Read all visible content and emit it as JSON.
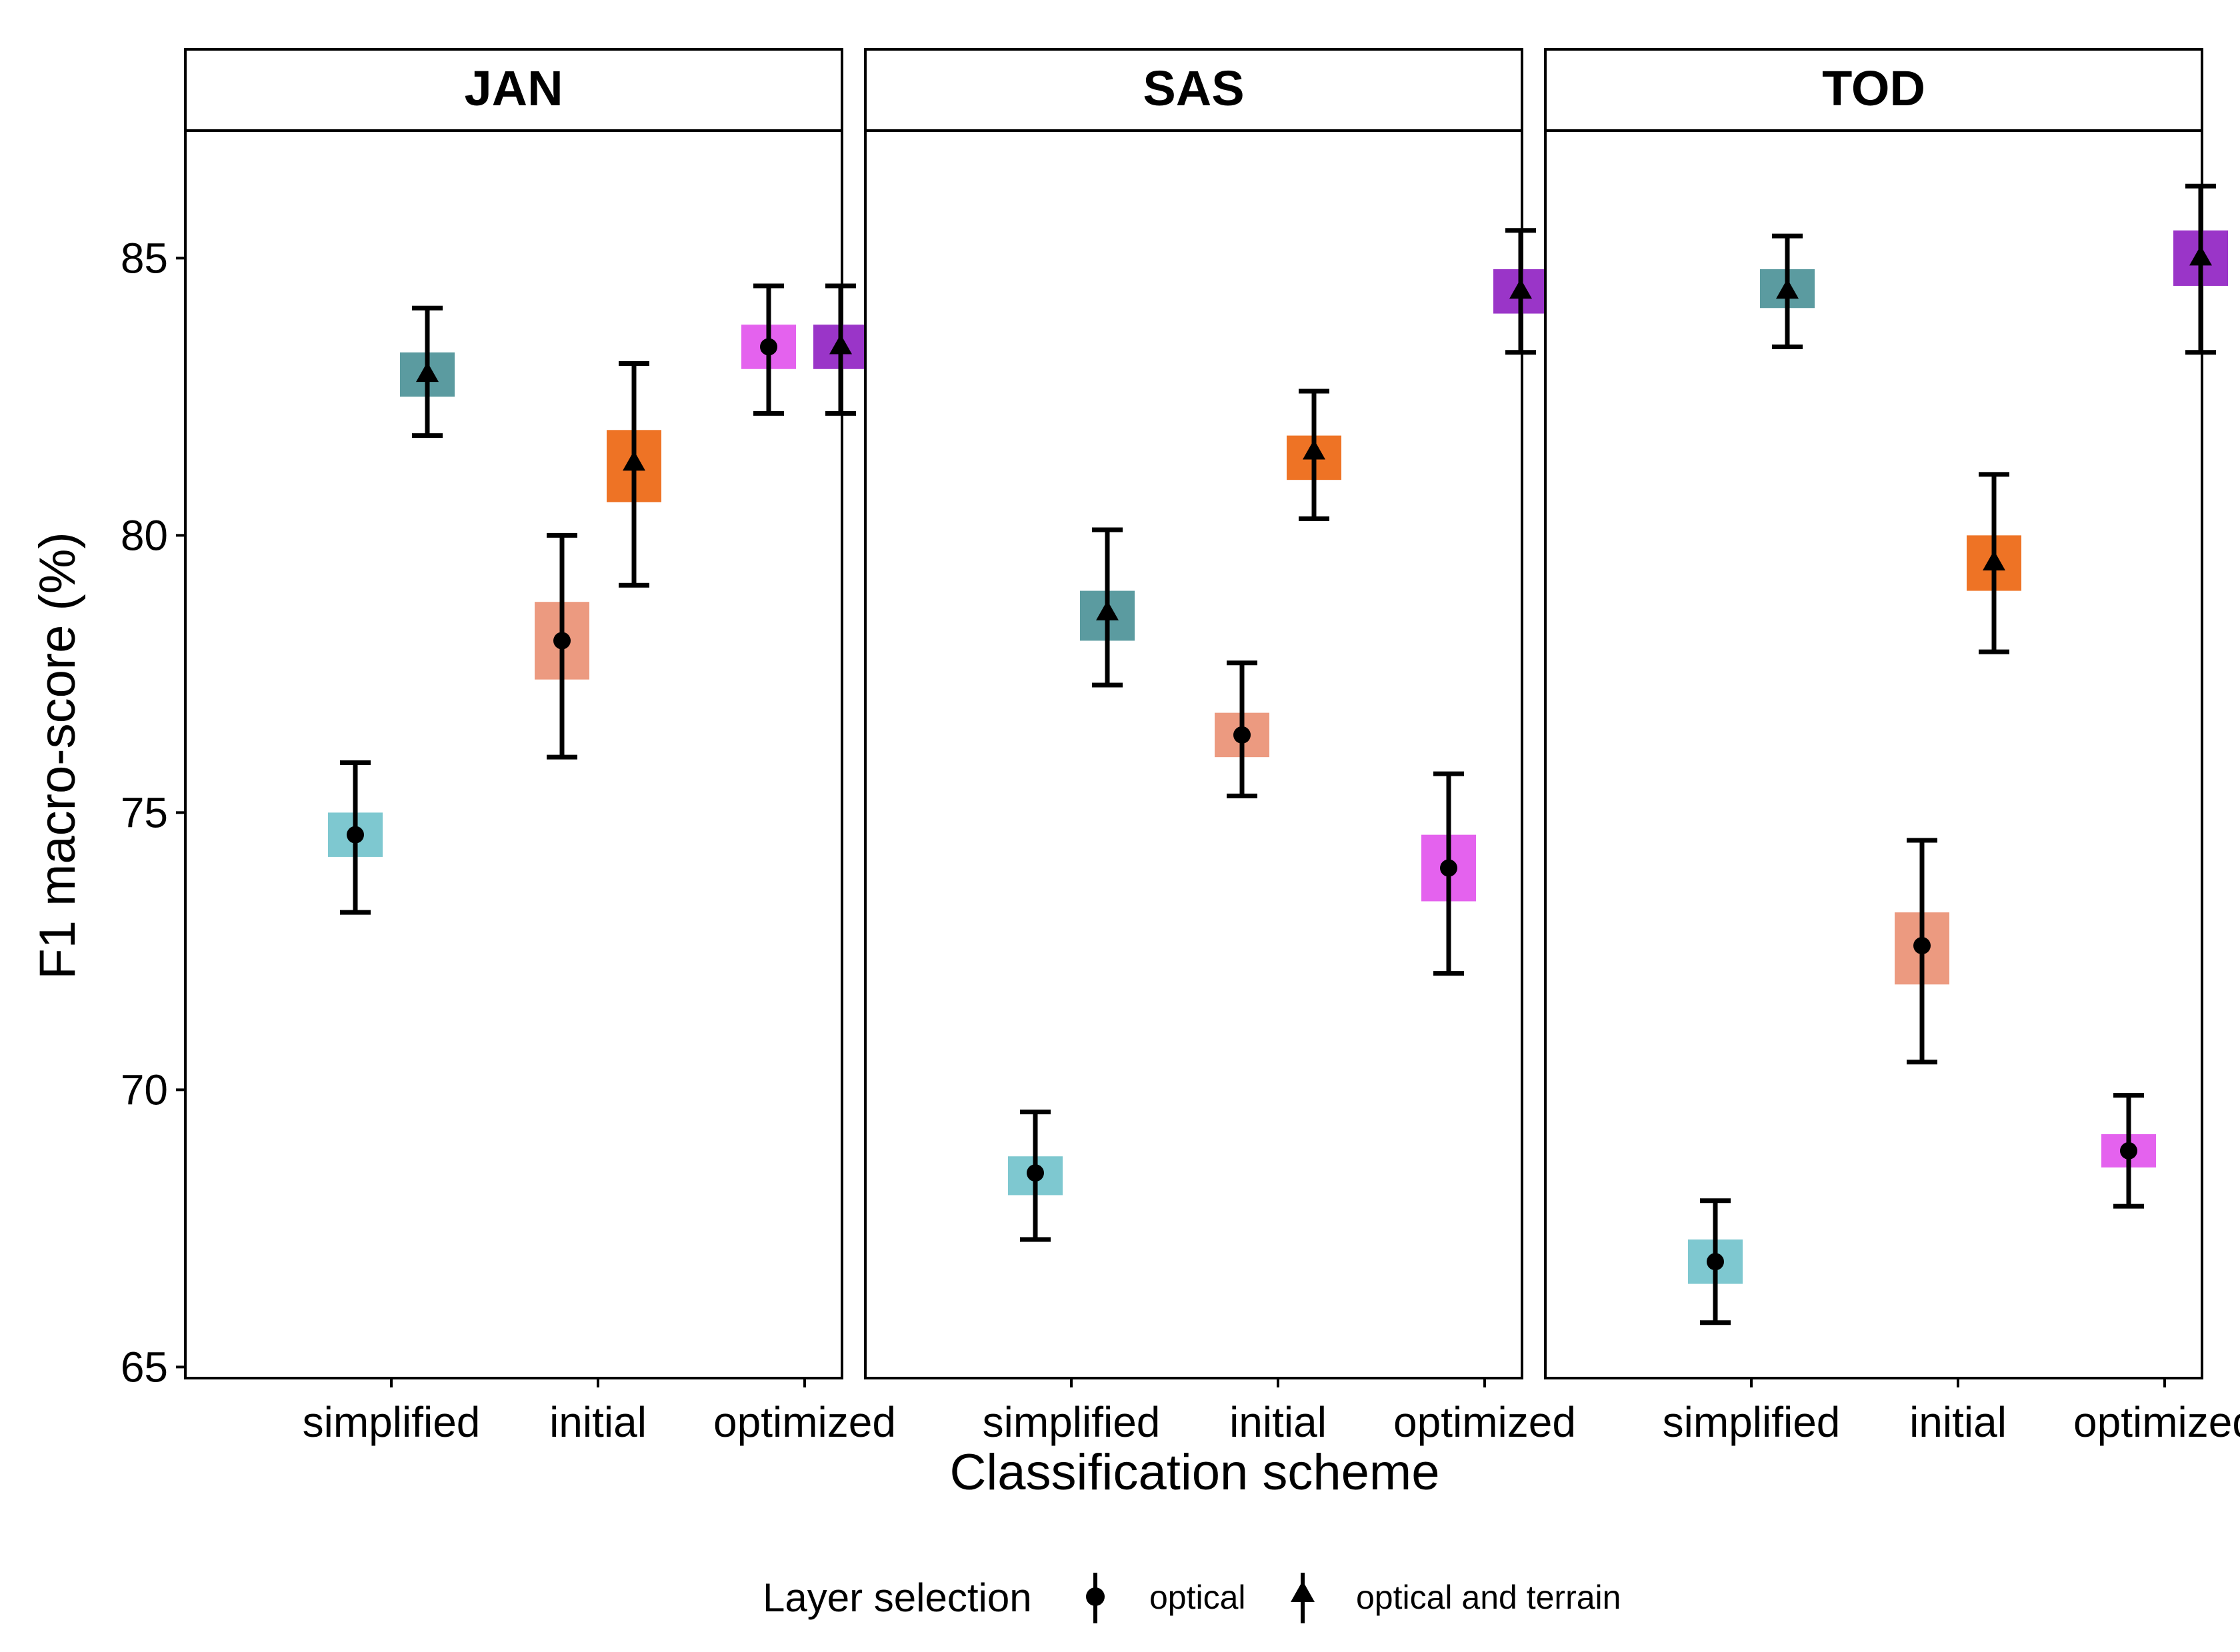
{
  "chart_data": {
    "type": "scatter",
    "subtype": "faceted point with error bars",
    "ylabel": "F1 macro-score (%)",
    "xlabel": "Classification scheme",
    "ylim": [
      64.8,
      87.3
    ],
    "yticks": [
      65,
      70,
      75,
      80,
      85
    ],
    "categories": [
      "simplified",
      "initial",
      "optimized"
    ],
    "legend": {
      "title": "Layer selection",
      "position": "bottom",
      "items": [
        {
          "key": "optical",
          "label": "optical",
          "shape": "circle"
        },
        {
          "key": "optical_terrain",
          "label": "optical and terrain",
          "shape": "triangle"
        }
      ]
    },
    "colors": {
      "simplified": {
        "optical": "#7ec8d0",
        "optical_terrain": "#5b9ba0"
      },
      "initial": {
        "optical": "#ec9a80",
        "optical_terrain": "#ee7325"
      },
      "optimized": {
        "optical": "#e462ee",
        "optical_terrain": "#9a35c8"
      }
    },
    "facets": [
      {
        "label": "JAN",
        "points": [
          {
            "category": "simplified",
            "series": "optical",
            "value": 74.6,
            "lower": 73.2,
            "upper": 75.9,
            "box": [
              74.2,
              75.0
            ]
          },
          {
            "category": "simplified",
            "series": "optical_terrain",
            "value": 82.9,
            "lower": 81.8,
            "upper": 84.1,
            "box": [
              82.5,
              83.3
            ]
          },
          {
            "category": "initial",
            "series": "optical",
            "value": 78.1,
            "lower": 76.0,
            "upper": 80.0,
            "box": [
              77.4,
              78.8
            ]
          },
          {
            "category": "initial",
            "series": "optical_terrain",
            "value": 81.3,
            "lower": 79.1,
            "upper": 83.1,
            "box": [
              80.6,
              81.9
            ]
          },
          {
            "category": "optimized",
            "series": "optical",
            "value": 83.4,
            "lower": 82.2,
            "upper": 84.5,
            "box": [
              83.0,
              83.8
            ]
          },
          {
            "category": "optimized",
            "series": "optical_terrain",
            "value": 83.4,
            "lower": 82.2,
            "upper": 84.5,
            "box": [
              83.0,
              83.8
            ]
          }
        ]
      },
      {
        "label": "SAS",
        "points": [
          {
            "category": "simplified",
            "series": "optical",
            "value": 68.5,
            "lower": 67.3,
            "upper": 69.6,
            "box": [
              68.1,
              68.8
            ]
          },
          {
            "category": "simplified",
            "series": "optical_terrain",
            "value": 78.6,
            "lower": 77.3,
            "upper": 80.1,
            "box": [
              78.1,
              79.0
            ]
          },
          {
            "category": "initial",
            "series": "optical",
            "value": 76.4,
            "lower": 75.3,
            "upper": 77.7,
            "box": [
              76.0,
              76.8
            ]
          },
          {
            "category": "initial",
            "series": "optical_terrain",
            "value": 81.5,
            "lower": 80.3,
            "upper": 82.6,
            "box": [
              81.0,
              81.8
            ]
          },
          {
            "category": "optimized",
            "series": "optical",
            "value": 74.0,
            "lower": 72.1,
            "upper": 75.7,
            "box": [
              73.4,
              74.6
            ]
          },
          {
            "category": "optimized",
            "series": "optical_terrain",
            "value": 84.4,
            "lower": 83.3,
            "upper": 85.5,
            "box": [
              84.0,
              84.8
            ]
          }
        ]
      },
      {
        "label": "TOD",
        "points": [
          {
            "category": "simplified",
            "series": "optical",
            "value": 66.9,
            "lower": 65.8,
            "upper": 68.0,
            "box": [
              66.5,
              67.3
            ]
          },
          {
            "category": "simplified",
            "series": "optical_terrain",
            "value": 84.4,
            "lower": 83.4,
            "upper": 85.4,
            "box": [
              84.1,
              84.8
            ]
          },
          {
            "category": "initial",
            "series": "optical",
            "value": 72.6,
            "lower": 70.5,
            "upper": 74.5,
            "box": [
              71.9,
              73.2
            ]
          },
          {
            "category": "initial",
            "series": "optical_terrain",
            "value": 79.5,
            "lower": 77.9,
            "upper": 81.1,
            "box": [
              79.0,
              80.0
            ]
          },
          {
            "category": "optimized",
            "series": "optical",
            "value": 68.9,
            "lower": 67.9,
            "upper": 69.9,
            "box": [
              68.6,
              69.2
            ]
          },
          {
            "category": "optimized",
            "series": "optical_terrain",
            "value": 85.0,
            "lower": 83.3,
            "upper": 86.3,
            "box": [
              84.5,
              85.5
            ]
          }
        ]
      }
    ]
  }
}
